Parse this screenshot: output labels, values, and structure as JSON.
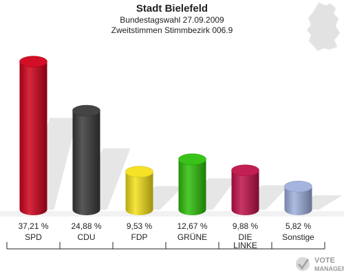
{
  "header": {
    "title": "Stadt Bielefeld",
    "subtitle": "Bundestagswahl 27.09.2009",
    "subtitle2": "Zweitstimmen Stimmbezirk 006.9"
  },
  "brand": {
    "line1": "VOTE",
    "line2": "MANAGER"
  },
  "chart_data": {
    "type": "bar",
    "title": "Stadt Bielefeld",
    "categories": [
      "SPD",
      "CDU",
      "FDP",
      "GRÜNE",
      "DIE LINKE",
      "Sonstige"
    ],
    "category_lines": [
      [
        "SPD"
      ],
      [
        "CDU"
      ],
      [
        "FDP"
      ],
      [
        "GRÜNE"
      ],
      [
        "DIE",
        "LINKE"
      ],
      [
        "Sonstige"
      ]
    ],
    "values": [
      37.21,
      24.88,
      9.53,
      12.67,
      9.88,
      5.82
    ],
    "value_labels": [
      "37,21 %",
      "24,88 %",
      "9,53 %",
      "12,67 %",
      "9,88 %",
      "5,82 %"
    ],
    "colors": [
      "#d0021b",
      "#3a3a3a",
      "#f4e01a",
      "#2fc00c",
      "#c0134a",
      "#9fb0dd"
    ],
    "ylim": [
      0,
      40
    ],
    "grid": false,
    "legend": "none"
  }
}
